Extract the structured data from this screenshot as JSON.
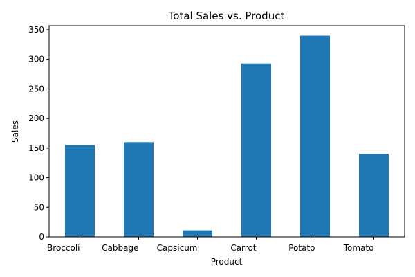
{
  "chart_data": {
    "type": "bar",
    "title": "Total Sales vs. Product",
    "xlabel": "Product",
    "ylabel": "Sales",
    "categories": [
      "Broccoli",
      "Cabbage",
      "Capsicum",
      "Carrot",
      "Potato",
      "Tomato"
    ],
    "values": [
      155,
      160,
      11,
      293,
      340,
      140
    ],
    "ylim": [
      0,
      357
    ],
    "yticks": [
      0,
      50,
      100,
      150,
      200,
      250,
      300,
      350
    ],
    "grid": false,
    "legend": "none",
    "bar_color": "#1f77b4"
  }
}
